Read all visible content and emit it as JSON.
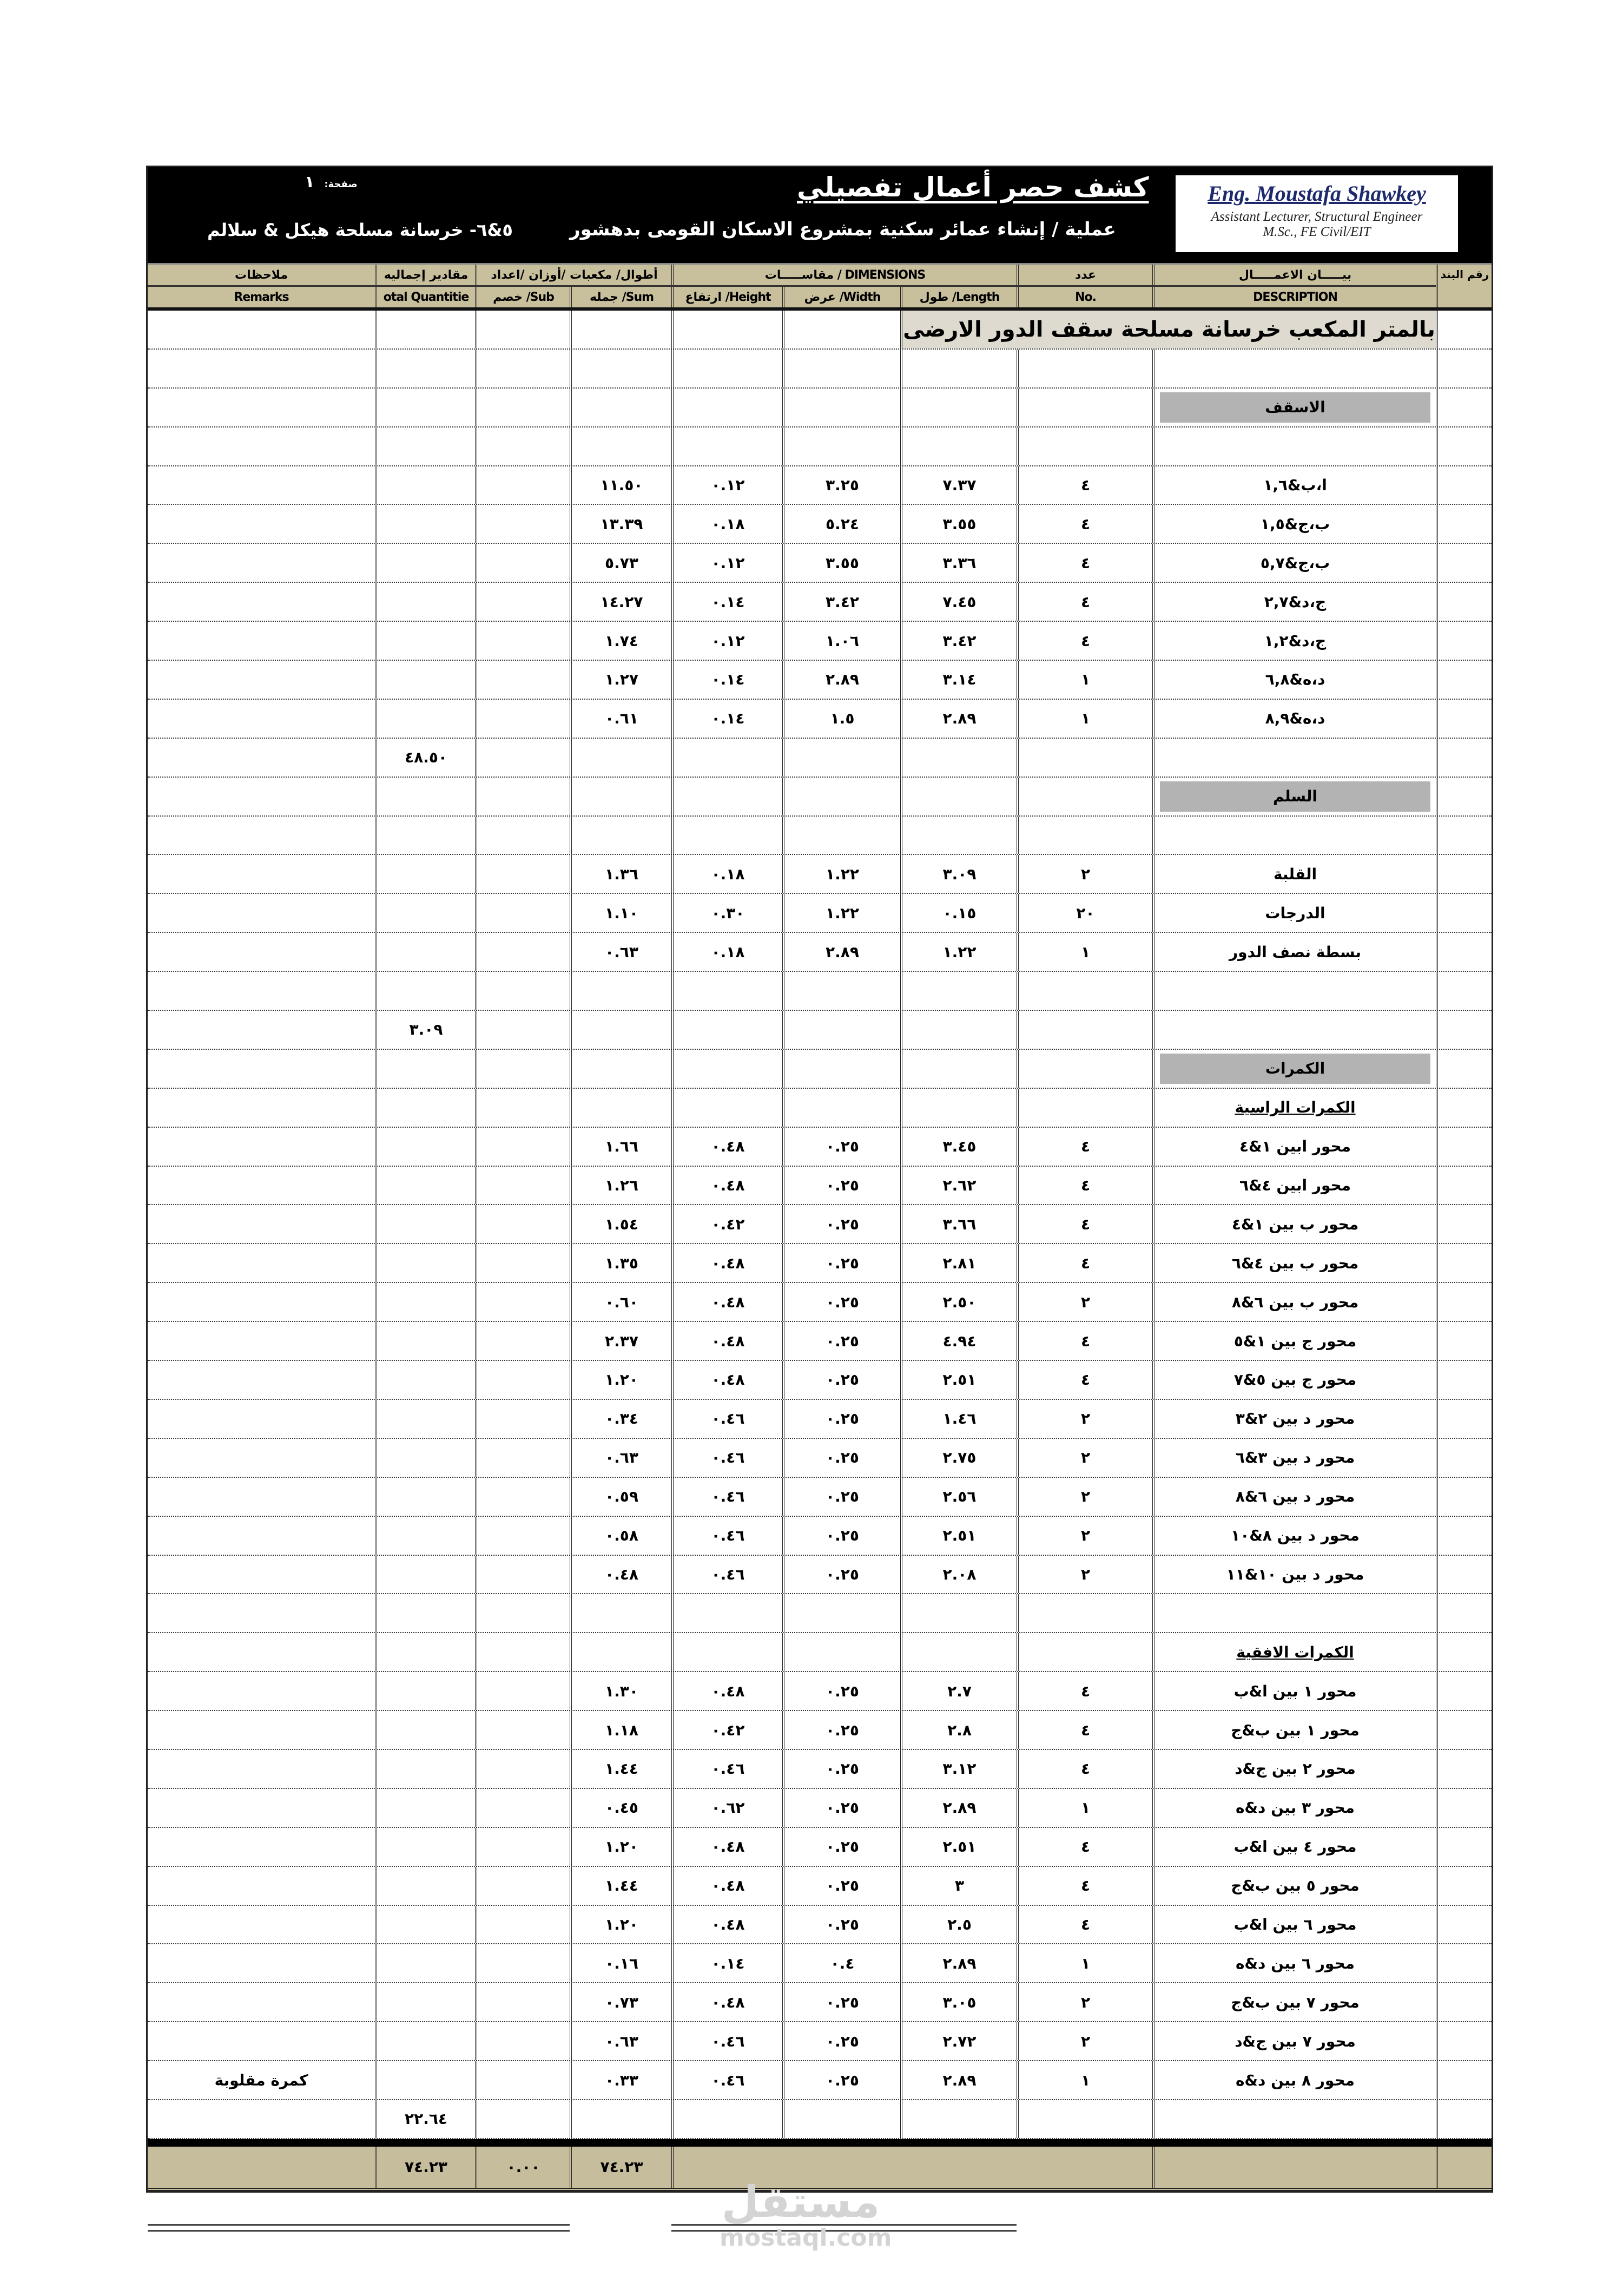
{
  "header": {
    "title": "كشف حصر أعمال تفصيلي",
    "project": "عملية / إنشاء عمائر سكنية بمشروع الاسكان القومى بدهشور",
    "section_name": "٥&٦- خرسانة مسلحة هيكل & سلالم",
    "page_label": "صفحة:",
    "page_no": "١",
    "logo": {
      "name": "Eng. Moustafa Shawkey",
      "role": "Assistant Lecturer, Structural Engineer",
      "degree": "M.Sc., FE Civil/EIT"
    }
  },
  "columns": {
    "remarks_ar": "ملاحظات",
    "remarks_en": "Remarks",
    "total_ar": "مقادير إجماليه",
    "total_en": "otal Quantitie",
    "group_qty": "أطوال/ مكعبات /أوزان /اعداد",
    "sub": "Sub/ خصم",
    "sum": "Sum/ جمله",
    "dimensions": "DIMENSIONS / مقاســـــات",
    "height": "Height/ ارتفاع",
    "width": "Width/ عرض",
    "length": "Length/ طول",
    "no_ar": "عدد",
    "no_en": ".No",
    "desc_ar": "بيـــــان الاعمـــــال",
    "desc_en": "DESCRIPTION",
    "item_no": "رقم البند"
  },
  "colors": {
    "header_bg": "#c8bf9c",
    "section_bg": "#b3b3b3",
    "title_bg": "#dedad0",
    "total_bg": "#c5bd9b"
  },
  "rows": [
    {
      "type": "title",
      "desc": "بالمتر المكعب خرسانة مسلحة سقف الدور الارضى"
    },
    {
      "type": "empty"
    },
    {
      "type": "section",
      "desc": "الاسقف"
    },
    {
      "type": "empty"
    },
    {
      "type": "item",
      "desc": "ا،ب&١,٦",
      "no": "٤",
      "length": "٧.٣٧",
      "width": "٣.٢٥",
      "height": "٠.١٢",
      "sum": "١١.٥٠"
    },
    {
      "type": "item",
      "desc": "ب،ج&١,٥",
      "no": "٤",
      "length": "٣.٥٥",
      "width": "٥.٢٤",
      "height": "٠.١٨",
      "sum": "١٣.٣٩"
    },
    {
      "type": "item",
      "desc": "ب،ج&٥,٧",
      "no": "٤",
      "length": "٣.٣٦",
      "width": "٣.٥٥",
      "height": "٠.١٢",
      "sum": "٥.٧٣"
    },
    {
      "type": "item",
      "desc": "ج،د&٢,٧",
      "no": "٤",
      "length": "٧.٤٥",
      "width": "٣.٤٢",
      "height": "٠.١٤",
      "sum": "١٤.٢٧"
    },
    {
      "type": "item",
      "desc": "ج،د&١,٢",
      "no": "٤",
      "length": "٣.٤٢",
      "width": "١.٠٦",
      "height": "٠.١٢",
      "sum": "١.٧٤"
    },
    {
      "type": "item",
      "desc": "د،ه&٦,٨",
      "no": "١",
      "length": "٣.١٤",
      "width": "٢.٨٩",
      "height": "٠.١٤",
      "sum": "١.٢٧"
    },
    {
      "type": "item",
      "desc": "د،ه&٨,٩",
      "no": "١",
      "length": "٢.٨٩",
      "width": "١.٥",
      "height": "٠.١٤",
      "sum": "٠.٦١"
    },
    {
      "type": "subtotal",
      "total": "٤٨.٥٠"
    },
    {
      "type": "section",
      "desc": "السلم"
    },
    {
      "type": "empty"
    },
    {
      "type": "item",
      "desc": "القلبة",
      "no": "٢",
      "length": "٣.٠٩",
      "width": "١.٢٢",
      "height": "٠.١٨",
      "sum": "١.٣٦"
    },
    {
      "type": "item",
      "desc": "الدرجات",
      "no": "٢٠",
      "length": "٠.١٥",
      "width": "١.٢٢",
      "height": "٠.٣٠",
      "sum": "١.١٠"
    },
    {
      "type": "item",
      "desc": "بسطة نصف الدور",
      "no": "١",
      "length": "١.٢٢",
      "width": "٢.٨٩",
      "height": "٠.١٨",
      "sum": "٠.٦٣"
    },
    {
      "type": "empty"
    },
    {
      "type": "subtotal",
      "total": "٣.٠٩"
    },
    {
      "type": "section",
      "desc": "الكمرات"
    },
    {
      "type": "subheading",
      "desc": "الكمرات الراسية"
    },
    {
      "type": "item",
      "desc": "محور ابين ١&٤",
      "no": "٤",
      "length": "٣.٤٥",
      "width": "٠.٢٥",
      "height": "٠.٤٨",
      "sum": "١.٦٦"
    },
    {
      "type": "item",
      "desc": "محور ابين ٤&٦",
      "no": "٤",
      "length": "٢.٦٢",
      "width": "٠.٢٥",
      "height": "٠.٤٨",
      "sum": "١.٢٦"
    },
    {
      "type": "item",
      "desc": "محور ب بين ١&٤",
      "no": "٤",
      "length": "٣.٦٦",
      "width": "٠.٢٥",
      "height": "٠.٤٢",
      "sum": "١.٥٤"
    },
    {
      "type": "item",
      "desc": "محور ب بين ٤&٦",
      "no": "٤",
      "length": "٢.٨١",
      "width": "٠.٢٥",
      "height": "٠.٤٨",
      "sum": "١.٣٥"
    },
    {
      "type": "item",
      "desc": "محور ب بين ٦&٨",
      "no": "٢",
      "length": "٢.٥٠",
      "width": "٠.٢٥",
      "height": "٠.٤٨",
      "sum": "٠.٦٠"
    },
    {
      "type": "item",
      "desc": "محور ج بين ١&٥",
      "no": "٤",
      "length": "٤.٩٤",
      "width": "٠.٢٥",
      "height": "٠.٤٨",
      "sum": "٢.٣٧"
    },
    {
      "type": "item",
      "desc": "محور ج بين ٥&٧",
      "no": "٤",
      "length": "٢.٥١",
      "width": "٠.٢٥",
      "height": "٠.٤٨",
      "sum": "١.٢٠"
    },
    {
      "type": "item",
      "desc": "محور د بين ٢&٣",
      "no": "٢",
      "length": "١.٤٦",
      "width": "٠.٢٥",
      "height": "٠.٤٦",
      "sum": "٠.٣٤"
    },
    {
      "type": "item",
      "desc": "محور د بين ٣&٦",
      "no": "٢",
      "length": "٢.٧٥",
      "width": "٠.٢٥",
      "height": "٠.٤٦",
      "sum": "٠.٦٣"
    },
    {
      "type": "item",
      "desc": "محور د بين ٦&٨",
      "no": "٢",
      "length": "٢.٥٦",
      "width": "٠.٢٥",
      "height": "٠.٤٦",
      "sum": "٠.٥٩"
    },
    {
      "type": "item",
      "desc": "محور د بين ٨&١٠",
      "no": "٢",
      "length": "٢.٥١",
      "width": "٠.٢٥",
      "height": "٠.٤٦",
      "sum": "٠.٥٨"
    },
    {
      "type": "item",
      "desc": "محور د بين ١٠&١١",
      "no": "٢",
      "length": "٢.٠٨",
      "width": "٠.٢٥",
      "height": "٠.٤٦",
      "sum": "٠.٤٨"
    },
    {
      "type": "empty"
    },
    {
      "type": "subheading",
      "desc": "الكمرات الافقية"
    },
    {
      "type": "item",
      "desc": "محور ١ بين ا&ب",
      "no": "٤",
      "length": "٢.٧",
      "width": "٠.٢٥",
      "height": "٠.٤٨",
      "sum": "١.٣٠"
    },
    {
      "type": "item",
      "desc": "محور ١ بين ب&ج",
      "no": "٤",
      "length": "٢.٨",
      "width": "٠.٢٥",
      "height": "٠.٤٢",
      "sum": "١.١٨"
    },
    {
      "type": "item",
      "desc": "محور ٢ بين ج&د",
      "no": "٤",
      "length": "٣.١٢",
      "width": "٠.٢٥",
      "height": "٠.٤٦",
      "sum": "١.٤٤"
    },
    {
      "type": "item",
      "desc": "محور ٣ بين د&ه",
      "no": "١",
      "length": "٢.٨٩",
      "width": "٠.٢٥",
      "height": "٠.٦٢",
      "sum": "٠.٤٥"
    },
    {
      "type": "item",
      "desc": "محور ٤ بين ا&ب",
      "no": "٤",
      "length": "٢.٥١",
      "width": "٠.٢٥",
      "height": "٠.٤٨",
      "sum": "١.٢٠"
    },
    {
      "type": "item",
      "desc": "محور ٥ بين ب&ج",
      "no": "٤",
      "length": "٣",
      "width": "٠.٢٥",
      "height": "٠.٤٨",
      "sum": "١.٤٤"
    },
    {
      "type": "item",
      "desc": "محور ٦ بين ا&ب",
      "no": "٤",
      "length": "٢.٥",
      "width": "٠.٢٥",
      "height": "٠.٤٨",
      "sum": "١.٢٠"
    },
    {
      "type": "item",
      "desc": "محور ٦ بين د&ه",
      "no": "١",
      "length": "٢.٨٩",
      "width": "٠.٤",
      "height": "٠.١٤",
      "sum": "٠.١٦"
    },
    {
      "type": "item",
      "desc": "محور ٧ بين ب&ج",
      "no": "٢",
      "length": "٣.٠٥",
      "width": "٠.٢٥",
      "height": "٠.٤٨",
      "sum": "٠.٧٣"
    },
    {
      "type": "item",
      "desc": "محور ٧ بين ج&د",
      "no": "٢",
      "length": "٢.٧٢",
      "width": "٠.٢٥",
      "height": "٠.٤٦",
      "sum": "٠.٦٣"
    },
    {
      "type": "item",
      "desc": "محور ٨ بين د&ه",
      "no": "١",
      "length": "٢.٨٩",
      "width": "٠.٢٥",
      "height": "٠.٤٦",
      "sum": "٠.٣٣",
      "remarks": "كمرة مقلوبة"
    },
    {
      "type": "subtotal",
      "total": "٢٢.٦٤"
    }
  ],
  "grand_total": {
    "total": "٧٤.٢٣",
    "sub": "٠.٠٠",
    "sum": "٧٤.٢٣"
  },
  "watermark": {
    "logo": "مستقل",
    "site": "mostaql.com"
  }
}
